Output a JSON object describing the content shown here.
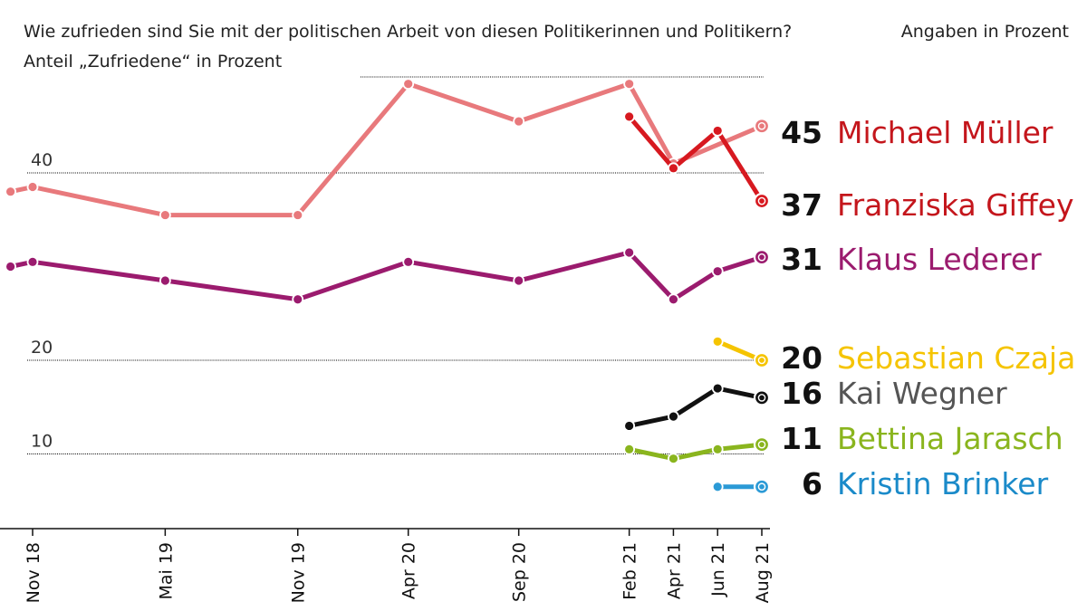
{
  "title": "Wie zufrieden sind Sie mit der politischen Arbeit von diesen Politikerinnen und Politikern?",
  "subtitle": "Anteil „Zufriedene“ in Prozent",
  "unit_note": "Angaben in Prozent",
  "chart_data": {
    "type": "line",
    "title": "Wie zufrieden sind Sie mit der politischen Arbeit von diesen Politikerinnen und Politikern?",
    "subtitle": "Anteil „Zufriedene“ in Prozent",
    "x_labels": [
      "Nov 18",
      "Mai 19",
      "Nov 19",
      "Apr 20",
      "Sep 20",
      "Feb 21",
      "Apr 21",
      "Jun 21",
      "Aug 21"
    ],
    "y_ticks": [
      10,
      20,
      40
    ],
    "ylim": [
      0,
      52
    ],
    "grid": true,
    "series": [
      {
        "name": "Michael Müller",
        "label_color": "#c4161c",
        "line_color": "#e8797c",
        "final_label": "45",
        "points": [
          [
            "Okt 18",
            38
          ],
          [
            "Nov 18",
            38.5
          ],
          [
            "Mai 19",
            35.5
          ],
          [
            "Nov 19",
            35.5
          ],
          [
            "Apr 20",
            49.5
          ],
          [
            "Sep 20",
            45.5
          ],
          [
            "Feb 21",
            49.5
          ],
          [
            "Apr 21",
            41
          ],
          [
            "Aug 21",
            45
          ]
        ]
      },
      {
        "name": "Franziska Giffey",
        "label_color": "#c4161c",
        "line_color": "#d71920",
        "final_label": "37",
        "points": [
          [
            "Feb 21",
            46
          ],
          [
            "Apr 21",
            40.5
          ],
          [
            "Jun 21",
            44.5
          ],
          [
            "Aug 21",
            37
          ]
        ]
      },
      {
        "name": "Klaus Lederer",
        "label_color": "#9b1b6e",
        "line_color": "#9b1b6e",
        "final_label": "31",
        "points": [
          [
            "Okt 18",
            30
          ],
          [
            "Nov 18",
            30.5
          ],
          [
            "Mai 19",
            28.5
          ],
          [
            "Nov 19",
            26.5
          ],
          [
            "Apr 20",
            30.5
          ],
          [
            "Sep 20",
            28.5
          ],
          [
            "Feb 21",
            31.5
          ],
          [
            "Apr 21",
            26.5
          ],
          [
            "Jun 21",
            29.5
          ],
          [
            "Aug 21",
            31
          ]
        ]
      },
      {
        "name": "Sebastian Czaja",
        "label_color": "#f5c400",
        "line_color": "#f5c400",
        "final_label": "20",
        "points": [
          [
            "Jun 21",
            22
          ],
          [
            "Aug 21",
            20
          ]
        ]
      },
      {
        "name": "Kai Wegner",
        "label_color": "#555555",
        "line_color": "#111111",
        "final_label": "16",
        "points": [
          [
            "Feb 21",
            13
          ],
          [
            "Apr 21",
            14
          ],
          [
            "Jun 21",
            17
          ],
          [
            "Aug 21",
            16
          ]
        ]
      },
      {
        "name": "Bettina Jarasch",
        "label_color": "#8ab51e",
        "line_color": "#8ab51e",
        "final_label": "11",
        "points": [
          [
            "Feb 21",
            10.5
          ],
          [
            "Apr 21",
            9.5
          ],
          [
            "Jun 21",
            10.5
          ],
          [
            "Aug 21",
            11
          ]
        ]
      },
      {
        "name": "Kristin Brinker",
        "label_color": "#1a8ac9",
        "line_color": "#2b9ad6",
        "final_label": "6",
        "points": [
          [
            "Jun 21",
            6.5
          ],
          [
            "Aug 21",
            6.5
          ]
        ]
      }
    ]
  }
}
